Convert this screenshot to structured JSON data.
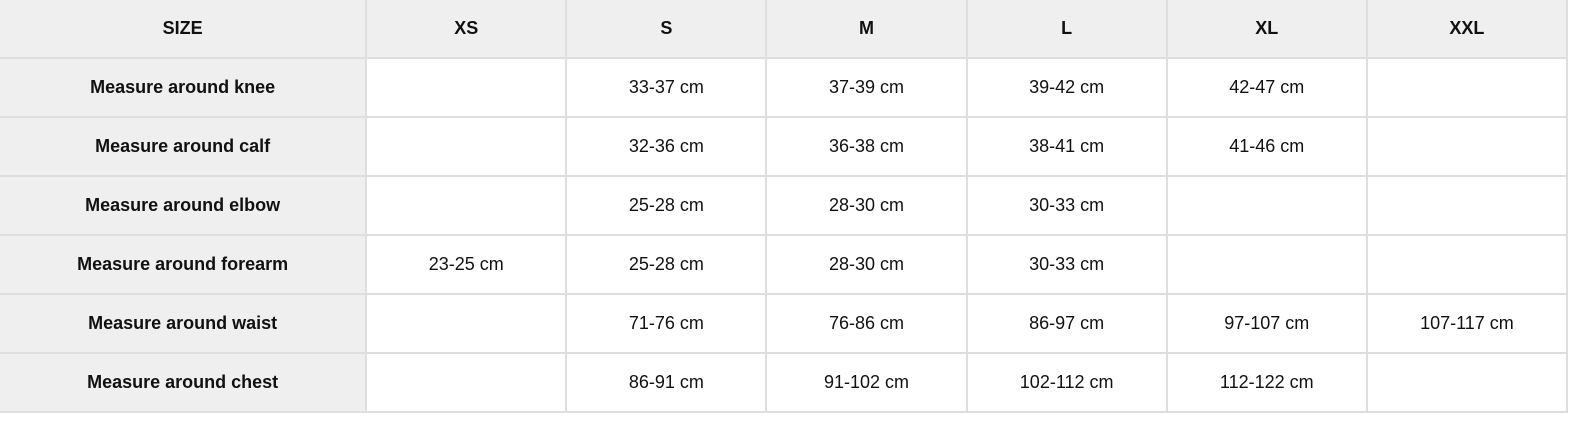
{
  "header": [
    "SIZE",
    "XS",
    "S",
    "M",
    "L",
    "XL",
    "XXL"
  ],
  "rows": [
    {
      "label": "Measure around knee",
      "cells": [
        "",
        "33-37 cm",
        "37-39 cm",
        "39-42 cm",
        "42-47 cm",
        ""
      ]
    },
    {
      "label": "Measure around calf",
      "cells": [
        "",
        "32-36 cm",
        "36-38 cm",
        "38-41 cm",
        "41-46 cm",
        ""
      ]
    },
    {
      "label": "Measure around elbow",
      "cells": [
        "",
        "25-28 cm",
        "28-30 cm",
        "30-33 cm",
        "",
        ""
      ]
    },
    {
      "label": "Measure around forearm",
      "cells": [
        "23-25 cm",
        "25-28 cm",
        "28-30 cm",
        "30-33 cm",
        "",
        ""
      ]
    },
    {
      "label": "Measure around waist",
      "cells": [
        "",
        "71-76 cm",
        "76-86 cm",
        "86-97 cm",
        "97-107 cm",
        "107-117 cm"
      ]
    },
    {
      "label": "Measure around chest",
      "cells": [
        "",
        "86-91 cm",
        "91-102 cm",
        "102-112 cm",
        "112-122 cm",
        ""
      ]
    }
  ],
  "colors": {
    "header_bg": "#efefef",
    "border": "#dedede"
  }
}
